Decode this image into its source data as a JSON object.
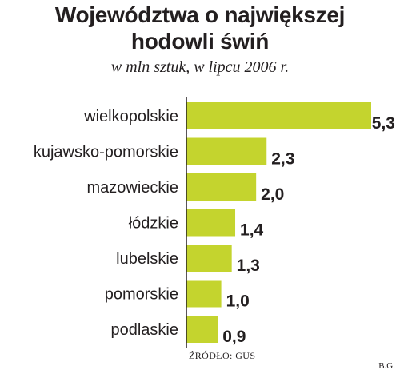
{
  "title_lines": [
    "Województwa o największej",
    "hodowli świń"
  ],
  "subtitle": "w mln sztuk, w lipcu 2006 r.",
  "source": "ŹRÓDŁO: GUS",
  "author": "B.G.",
  "colors": {
    "bar": "#c4d42e",
    "axis": "#231f20",
    "text": "#231f20"
  },
  "chart_data": {
    "type": "bar",
    "orientation": "horizontal",
    "categories": [
      "wielkopolskie",
      "kujawsko-pomorskie",
      "mazowieckie",
      "łódzkie",
      "lubelskie",
      "pomorskie",
      "podlaskie"
    ],
    "values": [
      5.3,
      2.3,
      2.0,
      1.4,
      1.3,
      1.0,
      0.9
    ],
    "value_labels": [
      "5,3",
      "2,3",
      "2,0",
      "1,4",
      "1,3",
      "1,0",
      "0,9"
    ],
    "xlim": [
      0,
      5.3
    ],
    "grid": false,
    "legend": "none"
  }
}
